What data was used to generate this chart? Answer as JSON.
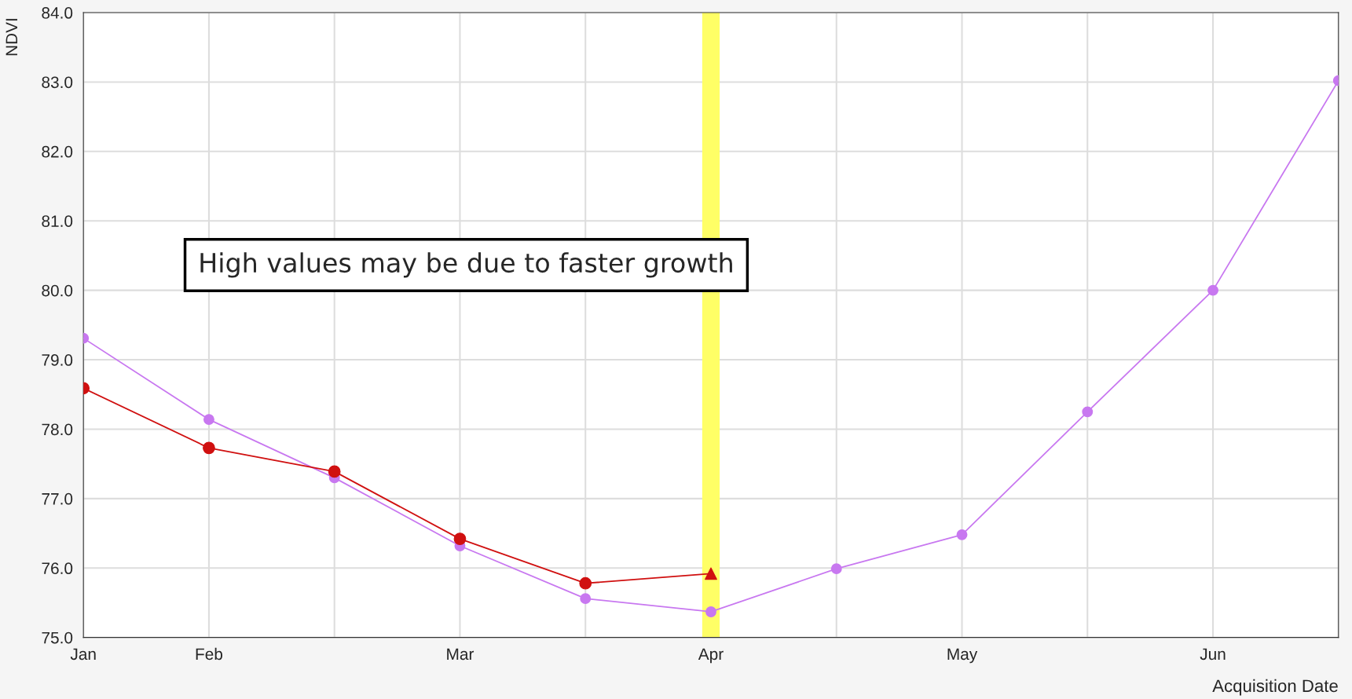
{
  "chart_data": {
    "type": "line",
    "ylabel": "NDVI",
    "xlabel": "Acquisition Date",
    "categories": [
      "Jan",
      "Feb",
      null,
      "Mar",
      null,
      "Apr",
      null,
      "May",
      null,
      "Jun",
      null
    ],
    "series": [
      {
        "color": "#c878f0",
        "values": [
          79.31,
          78.14,
          77.3,
          76.32,
          75.56,
          75.37,
          75.99,
          76.48,
          78.25,
          80.0,
          83.02
        ],
        "marker": "circle"
      },
      {
        "color": "#d01010",
        "values": [
          78.59,
          77.73,
          77.39,
          76.42,
          75.78,
          75.92,
          null,
          null,
          null,
          null,
          null
        ],
        "marker": "none"
      },
      {
        "type": "scatter",
        "color": "#d01010",
        "values": [
          78.59,
          77.73,
          77.39,
          76.42,
          75.78,
          null,
          null,
          null,
          null,
          null,
          null
        ],
        "marker": "circle"
      },
      {
        "type": "scatter",
        "color": "#d01010",
        "values": [
          null,
          null,
          null,
          null,
          null,
          75.92,
          null,
          null,
          null,
          null,
          null
        ],
        "marker": "triangle"
      }
    ],
    "ylim": [
      75.0,
      84.0
    ],
    "yticks": [
      {
        "value": 75,
        "label": "75.0"
      },
      {
        "value": 76,
        "label": "76.0"
      },
      {
        "value": 77,
        "label": "77.0"
      },
      {
        "value": 78,
        "label": "78.0"
      },
      {
        "value": 79,
        "label": "79.0"
      },
      {
        "value": 80,
        "label": "80.0"
      },
      {
        "value": 81,
        "label": "81.0"
      },
      {
        "value": 82,
        "label": "82.0"
      },
      {
        "value": 83,
        "label": "83.0"
      },
      {
        "value": 84,
        "label": "84.0"
      }
    ],
    "ref_lines": [
      {
        "axis": "x",
        "value": "Apr",
        "color": "#ffff66"
      }
    ],
    "grid": true,
    "annotations": [
      "High values may be due to faster growth"
    ]
  }
}
